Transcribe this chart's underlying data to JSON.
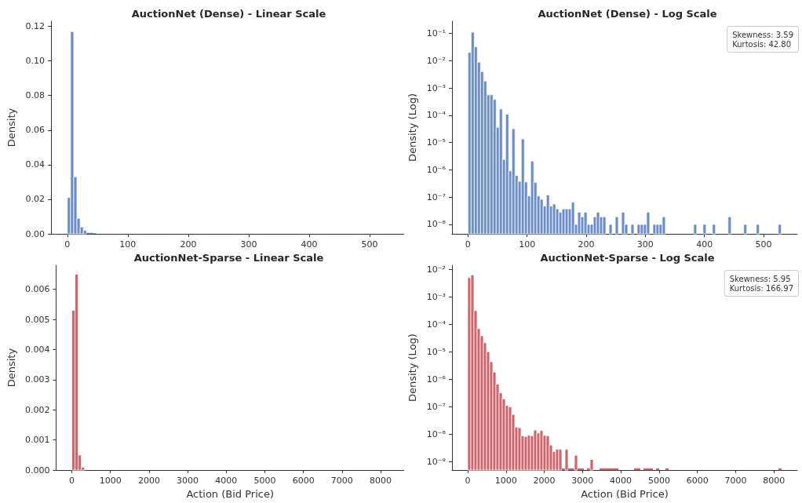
{
  "chart_data": [
    {
      "type": "histogram",
      "title": "AuctionNet (Dense) - Linear Scale",
      "ylabel": "Density",
      "color": "#6a8cc7",
      "bins": [
        0,
        5.3,
        10.6,
        15.9,
        21.2,
        26.5,
        31.8,
        37.1,
        42.4,
        47.7,
        53,
        58.3,
        63.6,
        68.9,
        74.2,
        79.5,
        84.8,
        90.1,
        95.4,
        100.7,
        106,
        111.3,
        116.6,
        121.9,
        127.2,
        132.5,
        137.8,
        143.1,
        148.4,
        153.7,
        159,
        164.3,
        169.6,
        174.9,
        180.2,
        185.5,
        190.8,
        196.1,
        201.4,
        206.7,
        212,
        217.3,
        222.6,
        227.9,
        233.2,
        238.5,
        243.8,
        249.1,
        254.4,
        259.7,
        265,
        270.3,
        275.6,
        280.9,
        286.2,
        291.5,
        296.8,
        302.1,
        307.4,
        312.7,
        318,
        323.3,
        328.6,
        333.9,
        339.2,
        344.5,
        349.8,
        355.1,
        360.4,
        365.7,
        371,
        376.3,
        381.6,
        386.9,
        392.2,
        397.5,
        402.8,
        408.1,
        413.4,
        418.7,
        424,
        429.3,
        434.6,
        439.9,
        445.2,
        450.5,
        455.8,
        461.1,
        466.4,
        471.7,
        477,
        482.3,
        487.6,
        492.9,
        498.2,
        503.5,
        508.8,
        514.1,
        519.4,
        524.7,
        530
      ],
      "values": [
        0.021,
        0.117,
        0.033,
        0.009,
        0.004,
        0.002,
        0.0006,
        0.0006,
        0.0004,
        0,
        0,
        0,
        0,
        0,
        0,
        0,
        0,
        0,
        0,
        0,
        0,
        0,
        0,
        0,
        0,
        0,
        0,
        0,
        0,
        0,
        0,
        0,
        0,
        0,
        0,
        0,
        0,
        0,
        0,
        0,
        0,
        0,
        0,
        0,
        0,
        0,
        0,
        0,
        0,
        0,
        0,
        0,
        0,
        0,
        0,
        0,
        0,
        0,
        0,
        0,
        0,
        0,
        0,
        0,
        0,
        0,
        0,
        0,
        0,
        0,
        0,
        0,
        0,
        0,
        0,
        0,
        0,
        0,
        0,
        0,
        0,
        0,
        0,
        0,
        0,
        0,
        0,
        0,
        0,
        0,
        0,
        0,
        0,
        0,
        0,
        0,
        0,
        0,
        0,
        0
      ],
      "xlim": [
        -27,
        557
      ],
      "xticks": [
        0,
        100,
        200,
        300,
        400,
        500
      ],
      "ylim": [
        0,
        0.123
      ],
      "yticks": [
        {
          "value": 0,
          "label": "0.00"
        },
        {
          "value": 0.02,
          "label": "0.02"
        },
        {
          "value": 0.04,
          "label": "0.04"
        },
        {
          "value": 0.06,
          "label": "0.06"
        },
        {
          "value": 0.08,
          "label": "0.08"
        },
        {
          "value": 0.1,
          "label": "0.10"
        },
        {
          "value": 0.12,
          "label": "0.12"
        }
      ],
      "grid": false
    },
    {
      "type": "histogram",
      "title": "AuctionNet (Dense) - Log Scale",
      "ylabel": "Density (Log)",
      "color": "#6a8cc7",
      "log": "y",
      "annotations": [
        "Skewness: 3.59\nKurtosis: 42.80"
      ],
      "bins": [
        0,
        5.3,
        10.6,
        15.9,
        21.2,
        26.5,
        31.8,
        37.1,
        42.4,
        47.7,
        53,
        58.3,
        63.6,
        68.9,
        74.2,
        79.5,
        84.8,
        90.1,
        95.4,
        100.7,
        106,
        111.3,
        116.6,
        121.9,
        127.2,
        132.5,
        137.8,
        143.1,
        148.4,
        153.7,
        159,
        164.3,
        169.6,
        174.9,
        180.2,
        185.5,
        190.8,
        196.1,
        201.4,
        206.7,
        212,
        217.3,
        222.6,
        227.9,
        233.2,
        238.5,
        243.8,
        249.1,
        254.4,
        259.7,
        265,
        270.3,
        275.6,
        280.9,
        286.2,
        291.5,
        296.8,
        302.1,
        307.4,
        312.7,
        318,
        323.3,
        328.6,
        333.9,
        339.2,
        344.5,
        349.8,
        355.1,
        360.4,
        365.7,
        371,
        376.3,
        381.6,
        386.9,
        392.2,
        397.5,
        402.8,
        408.1,
        413.4,
        418.7,
        424,
        429.3,
        434.6,
        439.9,
        445.2,
        450.5,
        455.8,
        461.1,
        466.4,
        471.7,
        477,
        482.3,
        487.6,
        492.9,
        498.2,
        503.5,
        508.8,
        514.1,
        519.4,
        524.7,
        530
      ],
      "values": [
        0.02,
        0.11,
        0.032,
        0.0088,
        0.004,
        0.0018,
        0.00056,
        0.00056,
        0.00038,
        3.6e-05,
        0.00017,
        2.4e-06,
        0.00011,
        9.1e-07,
        3.2e-05,
        6.2e-07,
        3.8e-07,
        1.35e-05,
        3.6e-07,
        1.1e-07,
        2.1e-06,
        3.5e-07,
        1.1e-07,
        8.3e-08,
        4.7e-08,
        1.2e-07,
        4.7e-08,
        5.6e-08,
        3.7e-08,
        2.8e-08,
        3.7e-08,
        3.7e-08,
        3.7e-08,
        6.5e-08,
        1e-08,
        2.8e-08,
        1.9e-08,
        2.8e-08,
        1e-08,
        1e-08,
        1.9e-08,
        2.8e-08,
        1.9e-08,
        1.9e-08,
        null,
        1e-08,
        null,
        1.9e-08,
        null,
        2.8e-08,
        1e-08,
        null,
        1e-08,
        null,
        1e-08,
        1e-08,
        1e-08,
        2.8e-08,
        null,
        1e-08,
        1e-08,
        1e-08,
        1.9e-08,
        null,
        null,
        null,
        null,
        null,
        null,
        null,
        null,
        null,
        1e-08,
        null,
        null,
        1e-08,
        null,
        null,
        1e-08,
        null,
        null,
        null,
        null,
        1.9e-08,
        null,
        null,
        null,
        null,
        1e-08,
        null,
        null,
        null,
        1e-08,
        null,
        null,
        null,
        null,
        null,
        null,
        1e-08
      ],
      "xlim": [
        -27,
        557
      ],
      "xticks": [
        0,
        100,
        200,
        300,
        400,
        500
      ],
      "ylim": [
        4.5e-09,
        0.28
      ],
      "yticks": [
        {
          "value": 1e-08,
          "label": "10⁻⁸"
        },
        {
          "value": 1e-07,
          "label": "10⁻⁷"
        },
        {
          "value": 1e-06,
          "label": "10⁻⁶"
        },
        {
          "value": 1e-05,
          "label": "10⁻⁵"
        },
        {
          "value": 0.0001,
          "label": "10⁻⁴"
        },
        {
          "value": 0.001,
          "label": "10⁻³"
        },
        {
          "value": 0.01,
          "label": "10⁻²"
        },
        {
          "value": 0.1,
          "label": "10⁻¹"
        }
      ],
      "grid": false
    },
    {
      "type": "histogram",
      "title": "AuctionNet-Sparse - Linear Scale",
      "xlabel": "Action (Bid Price)",
      "ylabel": "Density",
      "color": "#d0646b",
      "bins": [
        0,
        82,
        164,
        246,
        328,
        410,
        492,
        574,
        656,
        738,
        820,
        902,
        984,
        1066,
        1148,
        1230,
        1312,
        1394,
        1476,
        1558,
        1640,
        1722,
        1804,
        1886,
        1968,
        2050,
        2132,
        2214,
        2296,
        2378,
        2460,
        2542,
        2624,
        2706,
        2788,
        2870,
        2952,
        3034,
        3116,
        3198,
        3280,
        3362,
        3444,
        3526,
        3608,
        3690,
        3772,
        3854,
        3936,
        4018,
        4100,
        4182,
        4264,
        4346,
        4428,
        4510,
        4592,
        4674,
        4756,
        4838,
        4920,
        5002,
        5084,
        5166,
        5248,
        5330,
        5412,
        5494,
        5576,
        5658,
        5740,
        5822,
        5904,
        5986,
        6068,
        6150,
        6232,
        6314,
        6396,
        6478,
        6560,
        6642,
        6724,
        6806,
        6888,
        6970,
        7052,
        7134,
        7216,
        7298,
        7380,
        7462,
        7544,
        7626,
        7708,
        7790,
        7872,
        7954,
        8036,
        8118,
        8200
      ],
      "values": [
        0.0053,
        0.0065,
        0.0005,
        0.0001,
        0,
        0,
        0,
        0,
        0,
        0,
        0,
        0,
        0,
        0,
        0,
        0,
        0,
        0,
        0,
        0,
        0,
        0,
        0,
        0,
        0,
        0,
        0,
        0,
        0,
        0,
        0,
        0,
        0,
        0,
        0,
        0,
        0,
        0,
        0,
        0,
        0,
        0,
        0,
        0,
        0,
        0,
        0,
        0,
        0,
        0,
        0,
        0,
        0,
        0,
        0,
        0,
        0,
        0,
        0,
        0,
        0,
        0,
        0,
        0,
        0,
        0,
        0,
        0,
        0,
        0,
        0,
        0,
        0,
        0,
        0,
        0,
        0,
        0,
        0,
        0,
        0,
        0,
        0,
        0,
        0,
        0,
        0,
        0,
        0,
        0,
        0,
        0,
        0,
        0,
        0,
        0,
        0,
        0,
        0,
        0
      ],
      "xlim": [
        -410,
        8610
      ],
      "xticks": [
        0,
        1000,
        2000,
        3000,
        4000,
        5000,
        6000,
        7000,
        8000
      ],
      "ylim": [
        0,
        0.0068
      ],
      "yticks": [
        {
          "value": 0,
          "label": "0.000"
        },
        {
          "value": 0.001,
          "label": "0.001"
        },
        {
          "value": 0.002,
          "label": "0.002"
        },
        {
          "value": 0.003,
          "label": "0.003"
        },
        {
          "value": 0.004,
          "label": "0.004"
        },
        {
          "value": 0.005,
          "label": "0.005"
        },
        {
          "value": 0.006,
          "label": "0.006"
        }
      ],
      "grid": false
    },
    {
      "type": "histogram",
      "title": "AuctionNet-Sparse - Log Scale",
      "xlabel": "Action (Bid Price)",
      "ylabel": "Density (Log)",
      "color": "#d0646b",
      "log": "y",
      "annotations": [
        "Skewness: 5.95\nKurtosis: 166.97"
      ],
      "bins": [
        0,
        82,
        164,
        246,
        328,
        410,
        492,
        574,
        656,
        738,
        820,
        902,
        984,
        1066,
        1148,
        1230,
        1312,
        1394,
        1476,
        1558,
        1640,
        1722,
        1804,
        1886,
        1968,
        2050,
        2132,
        2214,
        2296,
        2378,
        2460,
        2542,
        2624,
        2706,
        2788,
        2870,
        2952,
        3034,
        3116,
        3198,
        3280,
        3362,
        3444,
        3526,
        3608,
        3690,
        3772,
        3854,
        3936,
        4018,
        4100,
        4182,
        4264,
        4346,
        4428,
        4510,
        4592,
        4674,
        4756,
        4838,
        4920,
        5002,
        5084,
        5166,
        5248,
        5330,
        5412,
        5494,
        5576,
        5658,
        5740,
        5822,
        5904,
        5986,
        6068,
        6150,
        6232,
        6314,
        6396,
        6478,
        6560,
        6642,
        6724,
        6806,
        6888,
        6970,
        7052,
        7134,
        7216,
        7298,
        7380,
        7462,
        7544,
        7626,
        7708,
        7790,
        7872,
        7954,
        8036,
        8118,
        8200
      ],
      "values": [
        0.0049,
        0.0062,
        0.00031,
        6.9e-05,
        3.8e-05,
        2.1e-05,
        1e-05,
        4.3e-06,
        1.8e-06,
        6.6e-07,
        3.2e-07,
        1.9e-07,
        1.1e-07,
        9.8e-08,
        5.2e-08,
        1.8e-08,
        1.7e-08,
        8.7e-09,
        8.2e-09,
        9e-09,
        8.7e-09,
        1.4e-08,
        1.1e-08,
        1.35e-08,
        9e-09,
        8.7e-09,
        4e-09,
        2.3e-09,
        2.8e-09,
        2.8e-09,
        5.7e-10,
        2.8e-09,
        5.7e-10,
        5.7e-10,
        1.7e-09,
        5.7e-10,
        5.7e-10,
        null,
        5.7e-10,
        1.2e-09,
        null,
        null,
        5.7e-10,
        5.7e-10,
        5.7e-10,
        5.7e-10,
        5.7e-10,
        5.7e-10,
        null,
        null,
        null,
        null,
        null,
        5.7e-10,
        5.7e-10,
        null,
        5.7e-10,
        5.7e-10,
        5.7e-10,
        null,
        5.7e-10,
        null,
        null,
        5.7e-10,
        null,
        null,
        null,
        null,
        null,
        null,
        null,
        null,
        null,
        null,
        null,
        null,
        null,
        null,
        null,
        null,
        null,
        null,
        null,
        null,
        null,
        null,
        null,
        null,
        null,
        null,
        null,
        null,
        null,
        null,
        null,
        null,
        null,
        null,
        null,
        5.7e-10
      ],
      "xlim": [
        -410,
        8610
      ],
      "xticks": [
        0,
        1000,
        2000,
        3000,
        4000,
        5000,
        6000,
        7000,
        8000
      ],
      "ylim": [
        4.9e-10,
        0.0139
      ],
      "yticks": [
        {
          "value": 1e-09,
          "label": "10⁻⁹"
        },
        {
          "value": 1e-08,
          "label": "10⁻⁸"
        },
        {
          "value": 1e-07,
          "label": "10⁻⁷"
        },
        {
          "value": 1e-06,
          "label": "10⁻⁶"
        },
        {
          "value": 1e-05,
          "label": "10⁻⁵"
        },
        {
          "value": 0.0001,
          "label": "10⁻⁴"
        },
        {
          "value": 0.001,
          "label": "10⁻³"
        },
        {
          "value": 0.01,
          "label": "10⁻²"
        }
      ],
      "grid": false
    }
  ]
}
